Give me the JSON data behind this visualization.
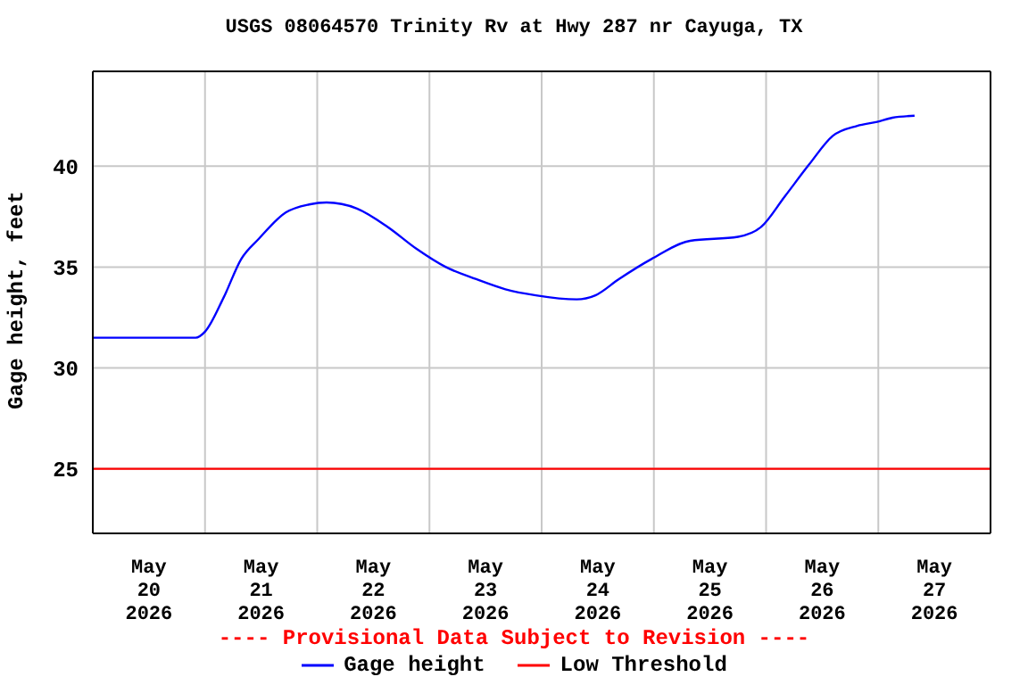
{
  "chart_data": {
    "type": "line",
    "title": "USGS 08064570 Trinity Rv at Hwy 287 nr Cayuga, TX",
    "ylabel": "Gage height, feet",
    "annotations": [
      "---- Provisional Data Subject to Revision ----"
    ],
    "series": [
      {
        "name": "Gage height",
        "color": "#0000ff",
        "x": [
          "2026-05-20T00:00",
          "2026-05-20T22:00",
          "2026-05-21T00:00",
          "2026-05-21T04:00",
          "2026-05-21T07:45",
          "2026-05-21T11:30",
          "2026-05-21T17:15",
          "2026-05-21T22:15",
          "2026-05-22T02:00",
          "2026-05-22T08:30",
          "2026-05-22T15:00",
          "2026-05-22T21:15",
          "2026-05-23T03:30",
          "2026-05-23T10:00",
          "2026-05-23T16:15",
          "2026-05-23T22:45",
          "2026-05-24T07:30",
          "2026-05-24T11:30",
          "2026-05-24T16:30",
          "2026-05-24T23:30",
          "2026-05-25T07:45",
          "2026-05-25T18:00",
          "2026-05-25T23:00",
          "2026-05-26T04:00",
          "2026-05-26T09:15",
          "2026-05-26T14:15",
          "2026-05-26T19:30",
          "2026-05-26T23:45",
          "2026-05-27T03:00",
          "2026-05-27T07:45"
        ],
        "values": [
          31.5,
          31.5,
          31.8,
          33.5,
          35.4,
          36.4,
          37.7,
          38.1,
          38.2,
          37.9,
          37.0,
          35.9,
          35.0,
          34.4,
          33.9,
          33.6,
          33.4,
          33.6,
          34.4,
          35.4,
          36.3,
          36.5,
          37.0,
          38.5,
          40.1,
          41.5,
          42.0,
          42.2,
          42.4,
          42.5
        ]
      }
    ],
    "ref_lines": [
      {
        "axis": "y",
        "value": 25,
        "label": "Low Threshold",
        "color": "#ff0000"
      }
    ],
    "xlim": [
      "2026-05-20T00:00",
      "2026-05-28T00:00"
    ],
    "xticks": [
      {
        "value": "2026-05-20T12:00",
        "label": "May\n20\n2026"
      },
      {
        "value": "2026-05-21T00:00",
        "label": null
      },
      {
        "value": "2026-05-21T12:00",
        "label": "May\n21\n2026"
      },
      {
        "value": "2026-05-22T00:00",
        "label": null
      },
      {
        "value": "2026-05-22T12:00",
        "label": "May\n22\n2026"
      },
      {
        "value": "2026-05-23T00:00",
        "label": null
      },
      {
        "value": "2026-05-23T12:00",
        "label": "May\n23\n2026"
      },
      {
        "value": "2026-05-24T00:00",
        "label": null
      },
      {
        "value": "2026-05-24T12:00",
        "label": "May\n24\n2026"
      },
      {
        "value": "2026-05-25T00:00",
        "label": null
      },
      {
        "value": "2026-05-25T12:00",
        "label": "May\n25\n2026"
      },
      {
        "value": "2026-05-26T00:00",
        "label": null
      },
      {
        "value": "2026-05-26T12:00",
        "label": "May\n26\n2026"
      },
      {
        "value": "2026-05-27T00:00",
        "label": null
      },
      {
        "value": "2026-05-27T12:00",
        "label": "May\n27\n2026"
      }
    ],
    "ylim": [
      21.8,
      44.7
    ],
    "yticks": [
      25,
      30,
      35,
      40
    ],
    "grid": true,
    "legend": "bottom",
    "marker": "none",
    "line_style": "solid"
  }
}
